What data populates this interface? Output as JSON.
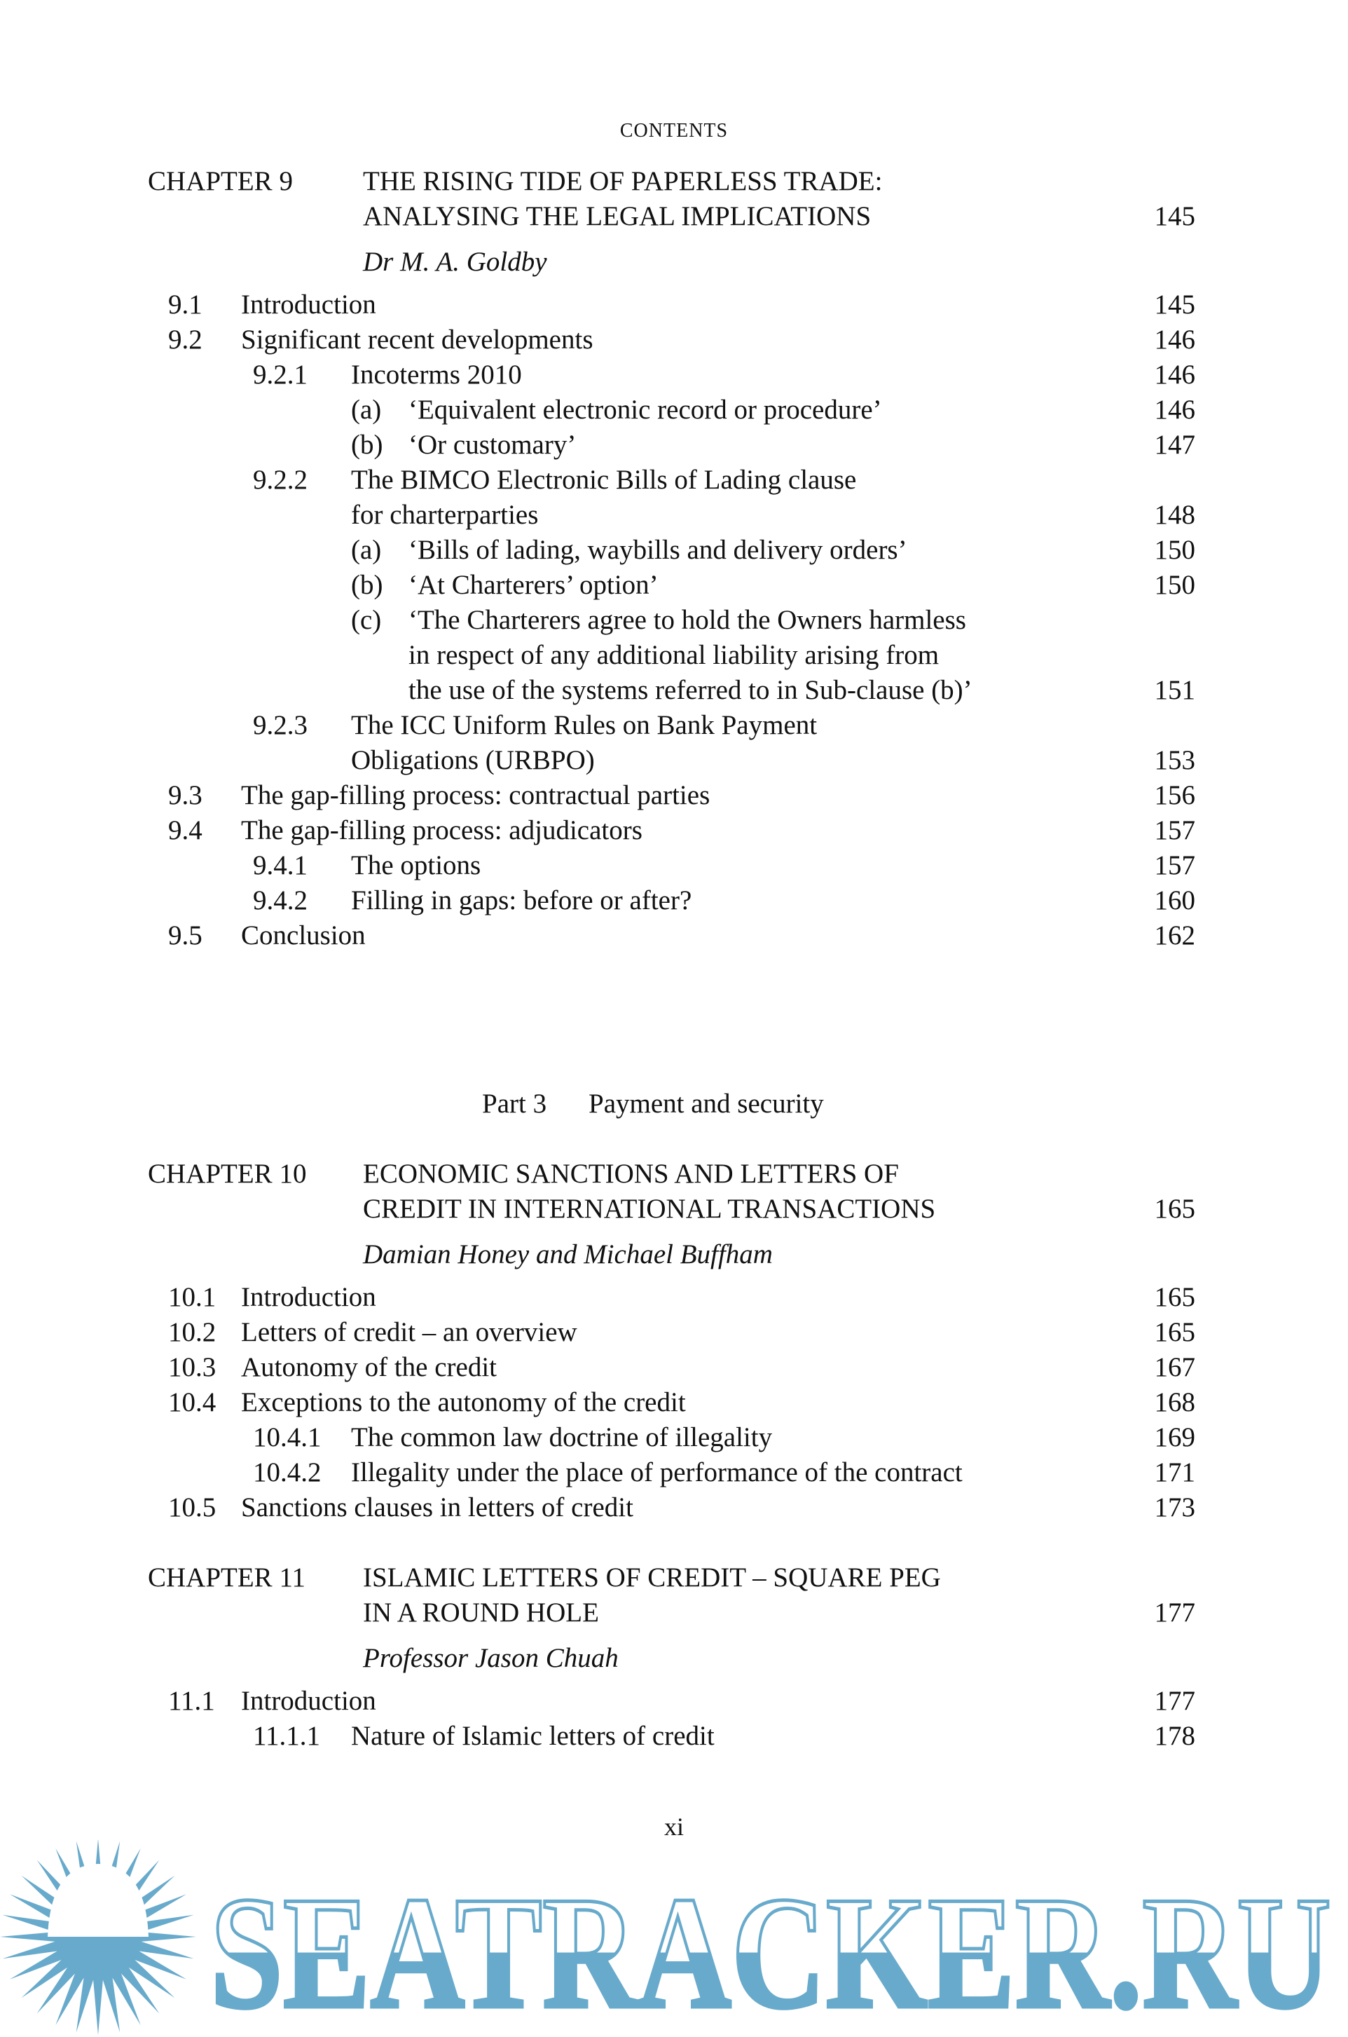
{
  "running_head": "CONTENTS",
  "folio": "xi",
  "watermark": {
    "text": "SEATRACKER.RU",
    "color": "#68aacb",
    "icon": "sun-icon"
  },
  "blocks": [
    {
      "type": "chapter",
      "label": "CHAPTER 9",
      "title": [
        "THE RISING TIDE OF PAPERLESS TRADE:",
        "ANALYSING THE LEGAL IMPLICATIONS"
      ],
      "page": "145",
      "author": "Dr M. A. Goldby",
      "entries": [
        {
          "level": 1,
          "num": "9.1",
          "text": [
            "Introduction"
          ],
          "page": "145"
        },
        {
          "level": 1,
          "num": "9.2",
          "text": [
            "Significant recent developments"
          ],
          "page": "146"
        },
        {
          "level": 2,
          "num": "9.2.1",
          "text": [
            "Incoterms 2010"
          ],
          "page": "146"
        },
        {
          "level": 3,
          "num": "(a)",
          "text": [
            "‘Equivalent electronic record or procedure’"
          ],
          "page": "146"
        },
        {
          "level": 3,
          "num": "(b)",
          "text": [
            "‘Or customary’"
          ],
          "page": "147"
        },
        {
          "level": 2,
          "num": "9.2.2",
          "text": [
            "The BIMCO Electronic Bills of Lading clause",
            "for charterparties"
          ],
          "page": "148"
        },
        {
          "level": 3,
          "num": "(a)",
          "text": [
            "‘Bills of lading, waybills and delivery orders’"
          ],
          "page": "150"
        },
        {
          "level": 3,
          "num": "(b)",
          "text": [
            "‘At Charterers’ option’"
          ],
          "page": "150"
        },
        {
          "level": 3,
          "num": "(c)",
          "text": [
            "‘The Charterers agree to hold the Owners harmless",
            "in respect of any additional liability arising from",
            "the use of the systems referred to in Sub-clause (b)’"
          ],
          "page": "151"
        },
        {
          "level": 2,
          "num": "9.2.3",
          "text": [
            "The ICC Uniform Rules on Bank Payment",
            "Obligations (URBPO)"
          ],
          "page": "153"
        },
        {
          "level": 1,
          "num": "9.3",
          "text": [
            "The gap-filling process: contractual parties"
          ],
          "page": "156"
        },
        {
          "level": 1,
          "num": "9.4",
          "text": [
            "The gap-filling process: adjudicators"
          ],
          "page": "157"
        },
        {
          "level": 2,
          "num": "9.4.1",
          "text": [
            "The options"
          ],
          "page": "157"
        },
        {
          "level": 2,
          "num": "9.4.2",
          "text": [
            "Filling in gaps: before or after?"
          ],
          "page": "160"
        },
        {
          "level": 1,
          "num": "9.5",
          "text": [
            "Conclusion"
          ],
          "page": "162"
        }
      ]
    },
    {
      "type": "part",
      "label": "Part 3",
      "title": "Payment and security"
    },
    {
      "type": "chapter",
      "label": "CHAPTER 10",
      "title": [
        "ECONOMIC SANCTIONS AND LETTERS OF",
        "CREDIT IN INTERNATIONAL TRANSACTIONS"
      ],
      "page": "165",
      "author": "Damian Honey and Michael Buffham",
      "entries": [
        {
          "level": 1,
          "num": "10.1",
          "text": [
            "Introduction"
          ],
          "page": "165"
        },
        {
          "level": 1,
          "num": "10.2",
          "text": [
            "Letters of credit – an overview"
          ],
          "page": "165"
        },
        {
          "level": 1,
          "num": "10.3",
          "text": [
            "Autonomy of the credit"
          ],
          "page": "167"
        },
        {
          "level": 1,
          "num": "10.4",
          "text": [
            "Exceptions to the autonomy of the credit"
          ],
          "page": "168"
        },
        {
          "level": 2,
          "num": "10.4.1",
          "text": [
            "The common law doctrine of illegality"
          ],
          "page": "169"
        },
        {
          "level": 2,
          "num": "10.4.2",
          "text": [
            "Illegality under the place of performance of the contract"
          ],
          "page": "171"
        },
        {
          "level": 1,
          "num": "10.5",
          "text": [
            "Sanctions clauses in letters of credit"
          ],
          "page": "173"
        }
      ]
    },
    {
      "type": "chapter",
      "label": "CHAPTER 11",
      "title": [
        "ISLAMIC LETTERS OF CREDIT – SQUARE PEG",
        "IN A ROUND HOLE"
      ],
      "page": "177",
      "author": "Professor Jason Chuah",
      "entries": [
        {
          "level": 1,
          "num": "11.1",
          "text": [
            "Introduction"
          ],
          "page": "177"
        },
        {
          "level": 2,
          "num": "11.1.1",
          "text": [
            "Nature of Islamic letters of credit"
          ],
          "page": "178"
        }
      ]
    }
  ]
}
